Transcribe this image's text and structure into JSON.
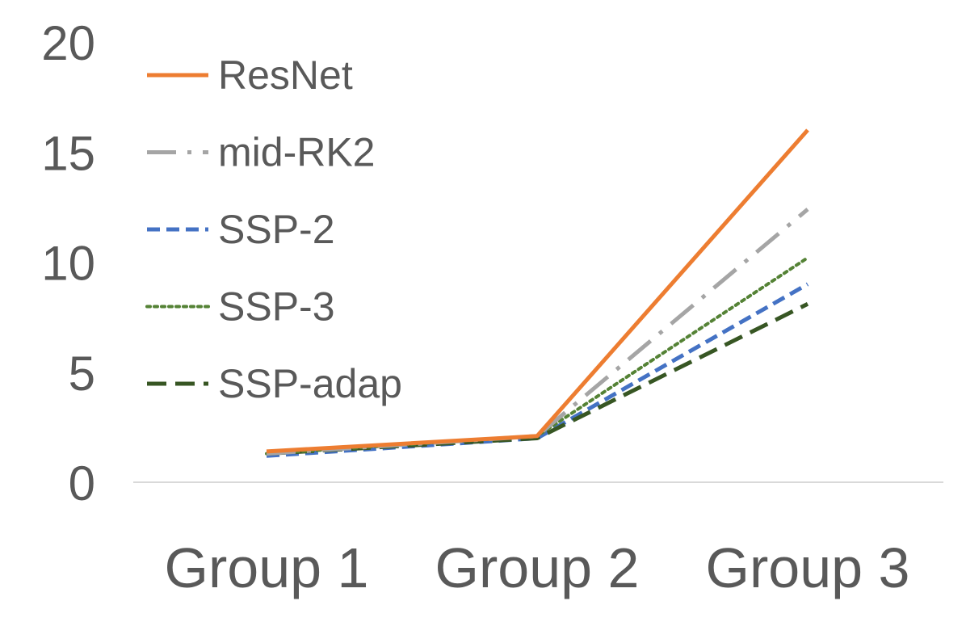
{
  "chart_data": {
    "type": "line",
    "title": "",
    "xlabel": "",
    "ylabel": "",
    "categories": [
      "Group 1",
      "Group 2",
      "Group 3"
    ],
    "ylim": [
      0,
      20
    ],
    "yticks": [
      0,
      5,
      10,
      15,
      20
    ],
    "grid": false,
    "legend_position": "top-left",
    "series": [
      {
        "name": "ResNet",
        "values": [
          1.4,
          2.1,
          16.0
        ],
        "color": "#ED7D31",
        "dash": "solid"
      },
      {
        "name": "mid-RK2",
        "values": [
          1.3,
          2.1,
          12.4
        ],
        "color": "#A5A5A5",
        "dash": "dash-dot"
      },
      {
        "name": "SSP-2",
        "values": [
          1.2,
          2.0,
          9.0
        ],
        "color": "#4472C4",
        "dash": "dash"
      },
      {
        "name": "SSP-3",
        "values": [
          1.3,
          2.1,
          10.2
        ],
        "color": "#548235",
        "dash": "dot"
      },
      {
        "name": "SSP-adap",
        "values": [
          1.3,
          2.0,
          8.1
        ],
        "color": "#375623",
        "dash": "long-dash"
      }
    ]
  }
}
